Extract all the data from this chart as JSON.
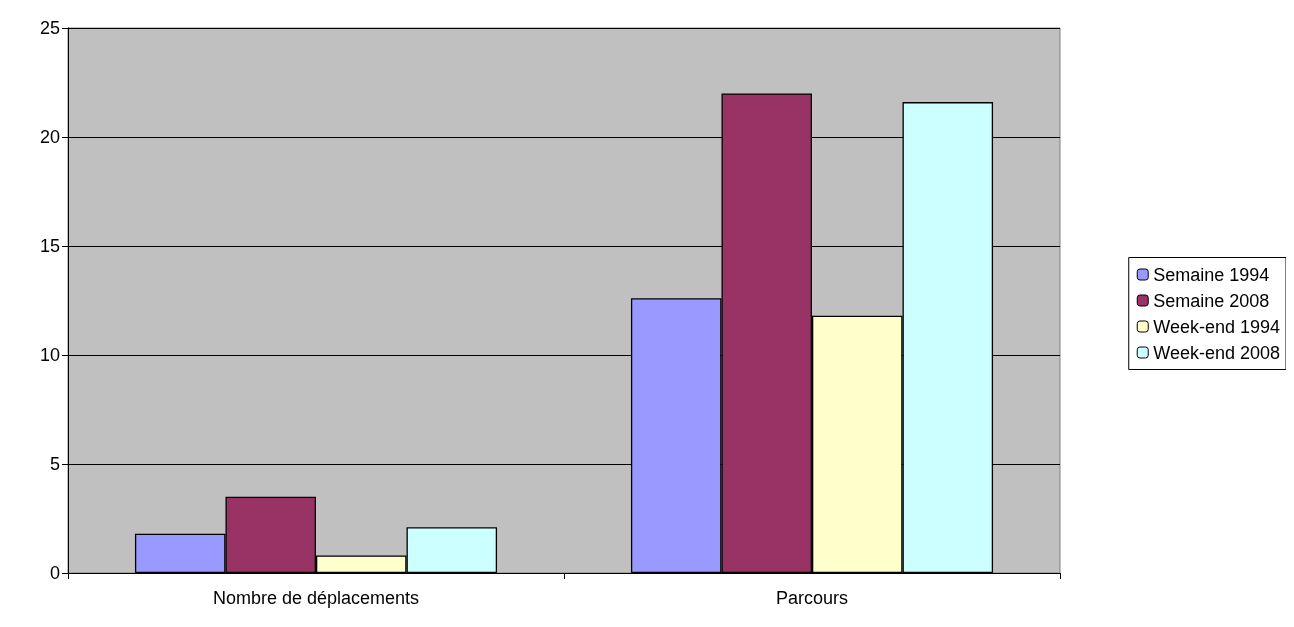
{
  "chart_data": {
    "type": "bar",
    "categories": [
      "Nombre de déplacements",
      "Parcours"
    ],
    "series": [
      {
        "name": "Semaine 1994",
        "color": "#9999ff",
        "values": [
          1.8,
          12.6
        ]
      },
      {
        "name": "Semaine 2008",
        "color": "#993366",
        "values": [
          3.5,
          22
        ]
      },
      {
        "name": "Week-end 1994",
        "color": "#ffffcc",
        "values": [
          0.8,
          11.8
        ]
      },
      {
        "name": "Week-end 2008",
        "color": "#ccffff",
        "values": [
          2.1,
          21.6
        ]
      }
    ],
    "ylim": [
      0,
      25
    ],
    "yticks": [
      0,
      5,
      10,
      15,
      20,
      25
    ],
    "grid": "y",
    "legend": "right"
  }
}
